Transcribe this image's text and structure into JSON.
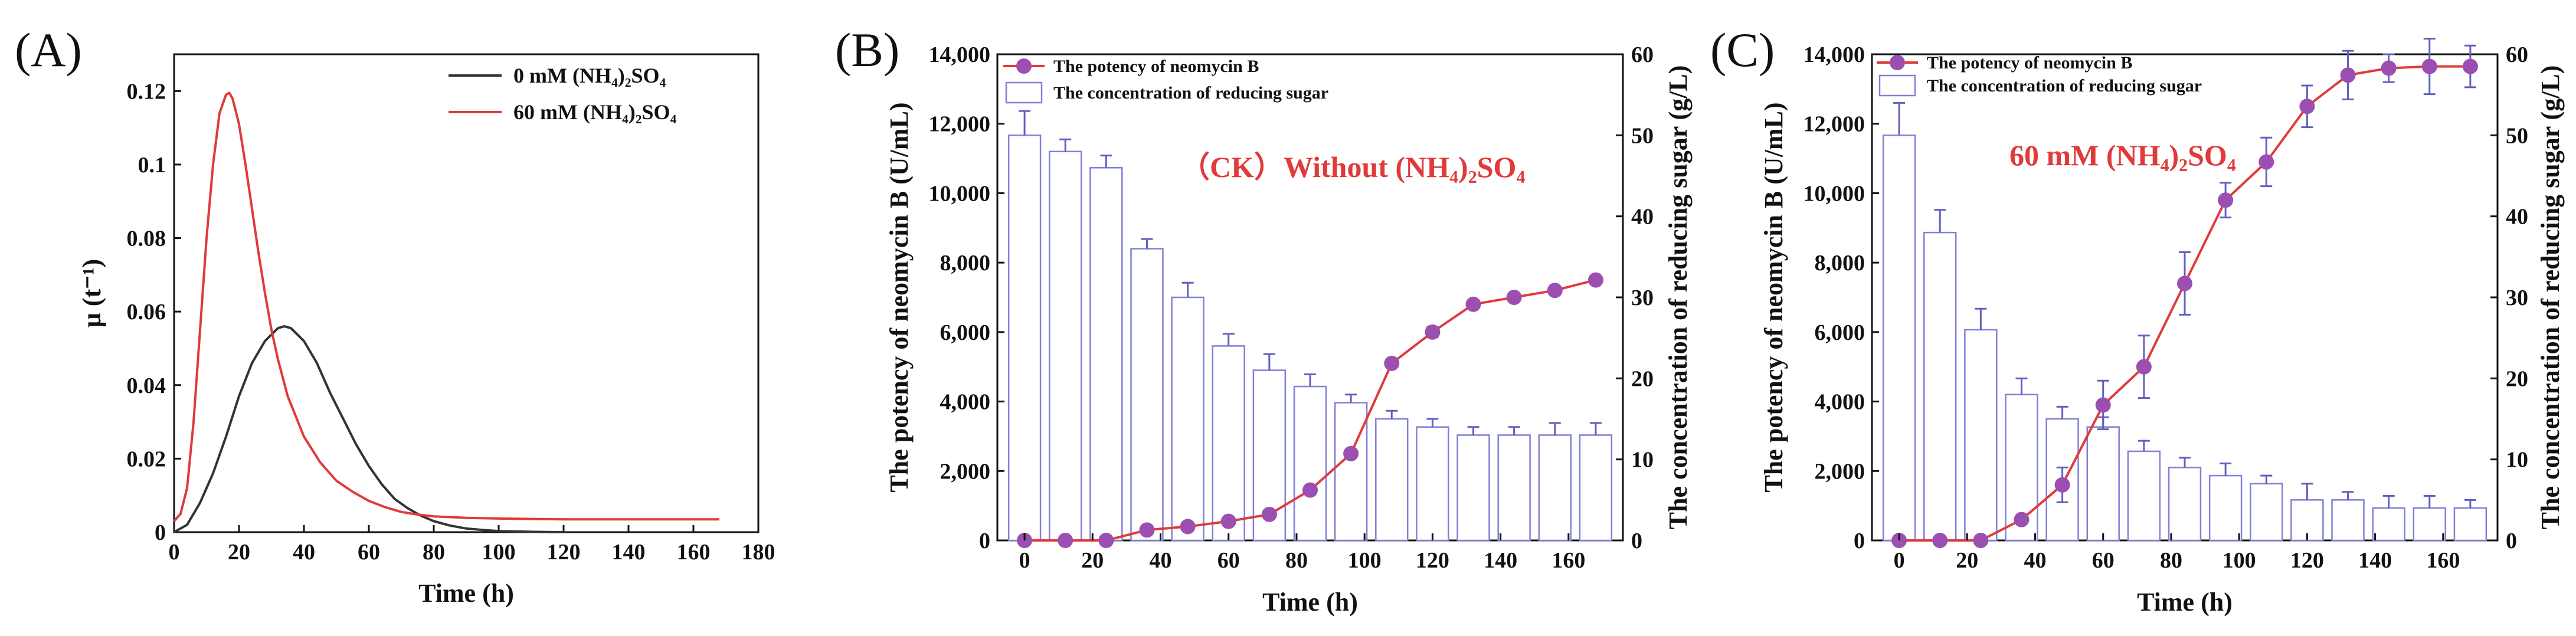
{
  "colors": {
    "black_line": "#333333",
    "red_line": "#e03a3a",
    "bar_stroke": "#8080d8",
    "error_bar": "#6060c0",
    "marker_fill": "#9b4fb0",
    "annotation": "#e03a3a"
  },
  "chart_data": [
    {
      "id": "A",
      "panel_label": "(A)",
      "type": "line",
      "xlabel": "Time (h)",
      "ylabel": "μ (t⁻¹)",
      "xlim": [
        0,
        180
      ],
      "ylim": [
        0,
        0.13
      ],
      "xticks": [
        "0",
        "20",
        "40",
        "60",
        "80",
        "100",
        "120",
        "140",
        "160",
        "180"
      ],
      "xtick_values": [
        0,
        20,
        40,
        60,
        80,
        100,
        120,
        140,
        160,
        180
      ],
      "yticks": [
        "0",
        "0.02",
        "0.04",
        "0.06",
        "0.08",
        "0.1",
        "0.12"
      ],
      "ytick_values": [
        0,
        0.02,
        0.04,
        0.06,
        0.08,
        0.1,
        0.12
      ],
      "legend": [
        {
          "label": "0 mM (NH₄)₂SO₄",
          "color": "#333333"
        },
        {
          "label": "60 mM (NH₄)₂SO₄",
          "color": "#e03a3a"
        }
      ],
      "series": [
        {
          "name": "0 mM (NH₄)₂SO₄",
          "color": "#333333",
          "x": [
            0,
            4,
            8,
            12,
            16,
            20,
            24,
            28,
            32,
            34,
            36,
            40,
            44,
            48,
            52,
            56,
            60,
            64,
            68,
            72,
            76,
            80,
            85,
            90,
            95,
            100,
            105,
            110,
            115,
            120
          ],
          "y": [
            0,
            0.002,
            0.008,
            0.016,
            0.026,
            0.037,
            0.046,
            0.052,
            0.0555,
            0.056,
            0.0555,
            0.052,
            0.046,
            0.038,
            0.031,
            0.024,
            0.018,
            0.013,
            0.009,
            0.0065,
            0.0045,
            0.003,
            0.0018,
            0.001,
            0.0006,
            0.0003,
            0.0002,
            0.0001,
            5e-05,
            0
          ]
        },
        {
          "name": "60 mM (NH₄)₂SO₄",
          "color": "#e03a3a",
          "x": [
            0,
            2,
            4,
            6,
            8,
            10,
            12,
            14,
            16,
            17,
            18,
            20,
            22,
            24,
            26,
            28,
            30,
            32,
            35,
            40,
            45,
            50,
            55,
            60,
            65,
            70,
            75,
            80,
            90,
            100,
            110,
            120,
            140,
            168
          ],
          "y": [
            0.003,
            0.005,
            0.012,
            0.03,
            0.055,
            0.08,
            0.1,
            0.114,
            0.119,
            0.1195,
            0.118,
            0.111,
            0.1,
            0.088,
            0.076,
            0.065,
            0.055,
            0.047,
            0.037,
            0.026,
            0.019,
            0.014,
            0.011,
            0.0085,
            0.0068,
            0.0055,
            0.0048,
            0.0043,
            0.0039,
            0.0037,
            0.0036,
            0.0035,
            0.0035,
            0.0035
          ]
        }
      ]
    },
    {
      "id": "B",
      "panel_label": "(B)",
      "type": "bar+line",
      "annotation": "（CK）Without (NH₄)₂SO₄",
      "xlabel": "Time (h)",
      "ylabel": "The potency of neomycin B (U/mL)",
      "ylabel_right": "The concentration of reducing sugar (g/L)",
      "xlim": [
        -8,
        176
      ],
      "ylim": [
        0,
        14000
      ],
      "ylim_right": [
        0,
        60
      ],
      "xticks": [
        "0",
        "20",
        "40",
        "60",
        "80",
        "100",
        "120",
        "140",
        "160"
      ],
      "xtick_values": [
        0,
        20,
        40,
        60,
        80,
        100,
        120,
        140,
        160
      ],
      "yticks": [
        "0",
        "2,000",
        "4,000",
        "6,000",
        "8,000",
        "10,000",
        "12,000",
        "14,000"
      ],
      "ytick_values": [
        0,
        2000,
        4000,
        6000,
        8000,
        10000,
        12000,
        14000
      ],
      "yticks_right": [
        "0",
        "10",
        "20",
        "30",
        "40",
        "50",
        "60"
      ],
      "ytick_values_right": [
        0,
        10,
        20,
        30,
        40,
        50,
        60
      ],
      "legend": [
        {
          "label": "The potency of neomycin B",
          "kind": "line-marker"
        },
        {
          "label": "The concentration of reducing sugar",
          "kind": "bar"
        }
      ],
      "time": [
        0,
        12,
        24,
        36,
        48,
        60,
        72,
        84,
        96,
        108,
        120,
        132,
        144,
        156,
        168
      ],
      "potency": [
        0,
        0,
        0,
        300,
        400,
        550,
        750,
        1450,
        2500,
        5100,
        6000,
        6800,
        7000,
        7200,
        7500
      ],
      "potency_err": [
        0,
        0,
        0,
        0,
        0,
        0,
        0,
        0,
        0,
        0,
        150,
        0,
        0,
        0,
        0
      ],
      "sugar": [
        50,
        48,
        46,
        36,
        30,
        24,
        21,
        19,
        17,
        15,
        14,
        13,
        13,
        13,
        13
      ],
      "sugar_err": [
        3,
        1.5,
        1.5,
        1.2,
        1.8,
        1.5,
        2,
        1.5,
        1,
        1,
        1,
        1,
        1,
        1.5,
        1.5
      ]
    },
    {
      "id": "C",
      "panel_label": "(C)",
      "type": "bar+line",
      "annotation": "60 mM (NH₄)₂SO₄",
      "xlabel": "Time (h)",
      "ylabel": "The potency of neomycin B (U/mL)",
      "ylabel_right": "The concentration of reducing sugar (g/L)",
      "xlim": [
        -8,
        176
      ],
      "ylim": [
        0,
        14000
      ],
      "ylim_right": [
        0,
        60
      ],
      "xticks": [
        "0",
        "20",
        "40",
        "60",
        "80",
        "100",
        "120",
        "140",
        "160"
      ],
      "xtick_values": [
        0,
        20,
        40,
        60,
        80,
        100,
        120,
        140,
        160
      ],
      "yticks": [
        "0",
        "2,000",
        "4,000",
        "6,000",
        "8,000",
        "10,000",
        "12,000",
        "14,000"
      ],
      "ytick_values": [
        0,
        2000,
        4000,
        6000,
        8000,
        10000,
        12000,
        14000
      ],
      "yticks_right": [
        "0",
        "10",
        "20",
        "30",
        "40",
        "50",
        "60"
      ],
      "ytick_values_right": [
        0,
        10,
        20,
        30,
        40,
        50,
        60
      ],
      "legend": [
        {
          "label": "The potency of neomycin B",
          "kind": "line-marker"
        },
        {
          "label": "The concentration of reducing sugar",
          "kind": "bar"
        }
      ],
      "time": [
        0,
        12,
        24,
        36,
        48,
        60,
        72,
        84,
        96,
        108,
        120,
        132,
        144,
        156,
        168
      ],
      "potency": [
        0,
        0,
        0,
        600,
        1600,
        3900,
        5000,
        7400,
        9800,
        10900,
        12500,
        13400,
        13600,
        13650,
        13650
      ],
      "potency_err": [
        0,
        0,
        0,
        0,
        500,
        700,
        900,
        900,
        500,
        700,
        600,
        700,
        400,
        800,
        600
      ],
      "sugar": [
        50,
        38,
        26,
        18,
        15,
        14,
        11,
        9,
        8,
        7,
        5,
        5,
        4,
        4,
        4
      ],
      "sugar_err": [
        4,
        2.8,
        2.6,
        2,
        1.5,
        1.2,
        1.3,
        1.2,
        1.5,
        1,
        2,
        1,
        1.5,
        1.5,
        1
      ]
    }
  ]
}
